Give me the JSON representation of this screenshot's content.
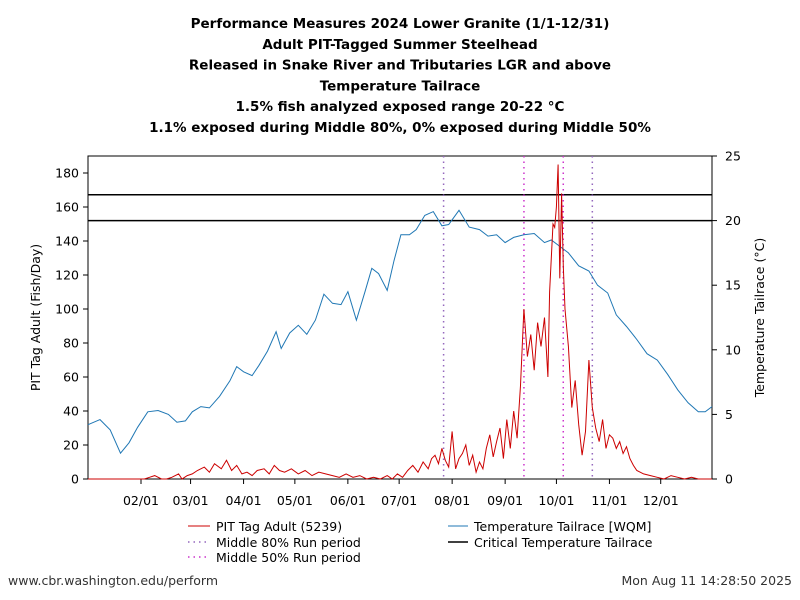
{
  "chart_data": {
    "type": "line",
    "title_lines": [
      "Performance Measures 2024 Lower Granite (1/1-12/31)",
      "Adult PIT-Tagged Summer Steelhead",
      "Released in Snake River and Tributaries LGR and above",
      "Temperature Tailrace",
      "1.5% fish analyzed exposed range 20-22 °C",
      "1.1% exposed during Middle 80%, 0% exposed during Middle 50%"
    ],
    "ylabel_left": "PIT Tag Adult (Fish/Day)",
    "ylabel_right": "Temperature Tailrace (°C)",
    "x_range_doy": [
      1,
      366
    ],
    "left_ylim": [
      0,
      190
    ],
    "right_ylim": [
      0,
      25
    ],
    "left_ticks": [
      "0",
      "20",
      "40",
      "60",
      "80",
      "100",
      "120",
      "140",
      "160",
      "180"
    ],
    "right_ticks": [
      "0",
      "5",
      "10",
      "15",
      "20",
      "25"
    ],
    "x_ticks": [
      {
        "label": "02/01",
        "doy": 32
      },
      {
        "label": "03/01",
        "doy": 61
      },
      {
        "label": "04/01",
        "doy": 92
      },
      {
        "label": "05/01",
        "doy": 122
      },
      {
        "label": "06/01",
        "doy": 153
      },
      {
        "label": "07/01",
        "doy": 183
      },
      {
        "label": "08/01",
        "doy": 214
      },
      {
        "label": "09/01",
        "doy": 245
      },
      {
        "label": "10/01",
        "doy": 275
      },
      {
        "label": "11/01",
        "doy": 306
      },
      {
        "label": "12/01",
        "doy": 336
      }
    ],
    "critical_temperature_c": [
      20,
      22
    ],
    "middle_80_run_doy": [
      209,
      296
    ],
    "middle_50_run_doy": [
      256,
      279
    ],
    "legend": {
      "fish": "PIT Tag Adult (5239)",
      "temp": "Temperature Tailrace [WQM]",
      "mid80": "Middle 80% Run period",
      "critical": "Critical Temperature Tailrace",
      "mid50": "Middle 50% Run period"
    },
    "colors": {
      "fish": "#cc0000",
      "temp": "#1f77b4",
      "mid80": "#9467bd",
      "mid50": "#cc33cc",
      "critical": "#000000"
    },
    "temperature_series": {
      "name": "Temperature Tailrace [WQM]",
      "doy": [
        1,
        8,
        14,
        20,
        25,
        30,
        36,
        42,
        48,
        53,
        58,
        62,
        67,
        72,
        78,
        84,
        88,
        92,
        97,
        101,
        106,
        111,
        114,
        119,
        124,
        129,
        134,
        139,
        144,
        149,
        153,
        158,
        163,
        167,
        171,
        176,
        180,
        184,
        189,
        193,
        198,
        203,
        208,
        212,
        218,
        224,
        230,
        235,
        240,
        245,
        250,
        256,
        262,
        268,
        272,
        277,
        282,
        288,
        294,
        299,
        305,
        310,
        316,
        322,
        328,
        334,
        340,
        346,
        352,
        358,
        362,
        366
      ],
      "values": [
        4.2,
        4.6,
        3.8,
        2.0,
        2.8,
        4.0,
        5.2,
        5.3,
        5.0,
        4.4,
        4.5,
        5.2,
        5.6,
        5.5,
        6.4,
        7.6,
        8.7,
        8.3,
        8.0,
        8.8,
        9.9,
        11.4,
        10.1,
        11.3,
        11.9,
        11.2,
        12.3,
        14.3,
        13.6,
        13.5,
        14.5,
        12.3,
        14.5,
        16.3,
        15.9,
        14.6,
        16.9,
        18.9,
        18.9,
        19.3,
        20.4,
        20.7,
        19.6,
        19.7,
        20.8,
        19.5,
        19.3,
        18.8,
        18.9,
        18.3,
        18.7,
        18.9,
        19.0,
        18.3,
        18.5,
        18.0,
        17.5,
        16.5,
        16.1,
        15.0,
        14.4,
        12.7,
        11.8,
        10.8,
        9.7,
        9.2,
        8.1,
        6.9,
        5.9,
        5.2,
        5.2,
        5.6
      ]
    },
    "fish_series": {
      "name": "PIT Tag Adult (5239)",
      "doy": [
        1,
        34,
        37,
        40,
        44,
        47,
        50,
        54,
        56,
        59,
        62,
        65,
        69,
        72,
        75,
        79,
        82,
        85,
        88,
        91,
        94,
        97,
        100,
        104,
        107,
        110,
        113,
        116,
        120,
        124,
        128,
        132,
        136,
        140,
        144,
        148,
        152,
        156,
        160,
        164,
        168,
        172,
        176,
        179,
        182,
        185,
        188,
        191,
        194,
        197,
        200,
        202,
        204,
        206,
        208,
        210,
        212,
        214,
        216,
        218,
        220,
        222,
        224,
        226,
        228,
        230,
        232,
        234,
        236,
        238,
        240,
        242,
        244,
        246,
        248,
        250,
        252,
        254,
        256,
        258,
        260,
        262,
        264,
        266,
        268,
        270,
        271,
        272,
        273,
        274,
        275,
        276,
        277,
        278,
        279,
        280,
        282,
        284,
        286,
        288,
        290,
        292,
        294,
        296,
        298,
        300,
        302,
        304,
        306,
        308,
        310,
        312,
        314,
        316,
        318,
        320,
        322,
        326,
        330,
        334,
        338,
        342,
        346,
        350,
        354,
        358,
        362,
        366
      ],
      "values": [
        0,
        0,
        1,
        2,
        0,
        0,
        1,
        3,
        0,
        2,
        3,
        5,
        7,
        4,
        9,
        6,
        11,
        5,
        8,
        3,
        4,
        2,
        5,
        6,
        3,
        8,
        5,
        4,
        6,
        3,
        5,
        2,
        4,
        3,
        2,
        1,
        3,
        1,
        2,
        0,
        1,
        0,
        2,
        0,
        3,
        1,
        5,
        8,
        4,
        10,
        6,
        12,
        14,
        9,
        18,
        11,
        7,
        28,
        6,
        12,
        15,
        20,
        8,
        14,
        4,
        10,
        6,
        18,
        26,
        13,
        22,
        30,
        12,
        35,
        18,
        40,
        24,
        55,
        100,
        72,
        85,
        64,
        92,
        78,
        95,
        60,
        110,
        130,
        150,
        148,
        160,
        185,
        118,
        168,
        125,
        100,
        78,
        42,
        58,
        32,
        14,
        28,
        70,
        42,
        30,
        22,
        35,
        18,
        26,
        24,
        18,
        22,
        15,
        19,
        12,
        8,
        5,
        3,
        2,
        1,
        0,
        2,
        1,
        0,
        1,
        0,
        0,
        0
      ]
    },
    "footer_left": "www.cbr.washington.edu/perform",
    "footer_right": "Mon Aug 11 14:28:50 2025"
  }
}
